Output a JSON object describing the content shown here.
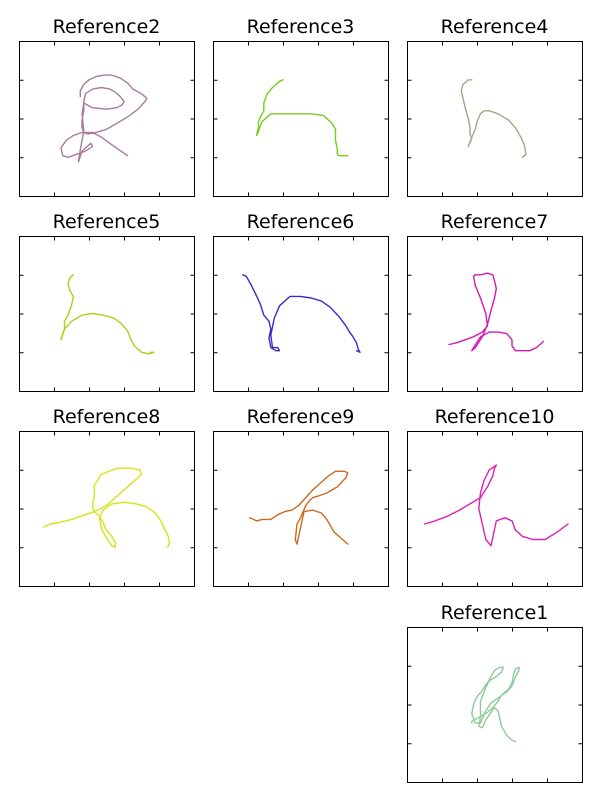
{
  "chart_data": [
    {
      "type": "line",
      "title": "Reference2",
      "color": "#a87ca0",
      "xlim": [
        0,
        1
      ],
      "ylim": [
        0,
        1
      ],
      "series": [
        {
          "x": [
            0.62,
            0.53,
            0.47,
            0.42,
            0.36,
            0.31,
            0.27,
            0.24,
            0.25,
            0.28,
            0.33,
            0.38,
            0.42,
            0.41,
            0.36,
            0.34,
            0.35,
            0.37,
            0.36,
            0.37,
            0.42,
            0.5,
            0.56,
            0.59,
            0.6,
            0.58,
            0.55,
            0.52,
            0.47,
            0.42,
            0.38,
            0.37,
            0.37,
            0.36,
            0.36,
            0.37,
            0.39,
            0.44,
            0.5,
            0.56,
            0.62,
            0.68,
            0.72,
            0.73,
            0.7,
            0.65,
            0.62,
            0.58,
            0.53,
            0.49,
            0.44,
            0.4,
            0.37,
            0.35,
            0.35
          ],
          "y": [
            0.26,
            0.33,
            0.38,
            0.41,
            0.41,
            0.39,
            0.36,
            0.31,
            0.26,
            0.25,
            0.27,
            0.29,
            0.32,
            0.34,
            0.29,
            0.22,
            0.3,
            0.42,
            0.53,
            0.6,
            0.57,
            0.56,
            0.57,
            0.59,
            0.61,
            0.64,
            0.67,
            0.69,
            0.7,
            0.69,
            0.66,
            0.61,
            0.55,
            0.49,
            0.44,
            0.41,
            0.4,
            0.41,
            0.43,
            0.47,
            0.51,
            0.56,
            0.61,
            0.63,
            0.66,
            0.69,
            0.73,
            0.76,
            0.78,
            0.78,
            0.77,
            0.75,
            0.72,
            0.68,
            0.64
          ]
        }
      ]
    },
    {
      "type": "line",
      "title": "Reference3",
      "color": "#76cc22",
      "xlim": [
        0,
        1
      ],
      "ylim": [
        0,
        1
      ],
      "series": [
        {
          "x": [
            0.4,
            0.38,
            0.34,
            0.31,
            0.29,
            0.29,
            0.27,
            0.26,
            0.26,
            0.25,
            0.25,
            0.28,
            0.33,
            0.4,
            0.48,
            0.56,
            0.63,
            0.68,
            0.7,
            0.7,
            0.71,
            0.71,
            0.72,
            0.74,
            0.76,
            0.77
          ],
          "y": [
            0.75,
            0.74,
            0.7,
            0.66,
            0.6,
            0.55,
            0.51,
            0.48,
            0.44,
            0.4,
            0.39,
            0.48,
            0.53,
            0.53,
            0.53,
            0.53,
            0.52,
            0.47,
            0.43,
            0.36,
            0.3,
            0.27,
            0.26,
            0.26,
            0.26,
            0.26
          ]
        }
      ]
    },
    {
      "type": "line",
      "title": "Reference4",
      "color": "#a8a688",
      "xlim": [
        0,
        1
      ],
      "ylim": [
        0,
        1
      ],
      "series": [
        {
          "x": [
            0.37,
            0.35,
            0.32,
            0.31,
            0.32,
            0.33,
            0.34,
            0.35,
            0.36,
            0.36,
            0.37,
            0.35,
            0.37,
            0.39,
            0.4,
            0.42,
            0.44,
            0.47,
            0.52,
            0.58,
            0.62,
            0.65,
            0.67,
            0.68,
            0.66,
            0.66
          ],
          "y": [
            0.75,
            0.75,
            0.72,
            0.68,
            0.63,
            0.58,
            0.54,
            0.5,
            0.44,
            0.4,
            0.37,
            0.32,
            0.38,
            0.43,
            0.48,
            0.53,
            0.55,
            0.55,
            0.53,
            0.49,
            0.44,
            0.38,
            0.33,
            0.27,
            0.25,
            0.25
          ]
        }
      ]
    },
    {
      "type": "line",
      "title": "Reference5",
      "color": "#a8d21a",
      "xlim": [
        0,
        1
      ],
      "ylim": [
        0,
        1
      ],
      "series": [
        {
          "x": [
            0.31,
            0.29,
            0.28,
            0.29,
            0.31,
            0.3,
            0.28,
            0.26,
            0.26,
            0.25,
            0.24,
            0.26,
            0.3,
            0.36,
            0.42,
            0.48,
            0.54,
            0.58,
            0.62,
            0.64,
            0.66,
            0.68,
            0.69,
            0.7,
            0.74,
            0.77,
            0.75
          ],
          "y": [
            0.75,
            0.73,
            0.69,
            0.65,
            0.61,
            0.55,
            0.49,
            0.45,
            0.4,
            0.37,
            0.33,
            0.4,
            0.45,
            0.49,
            0.5,
            0.49,
            0.47,
            0.44,
            0.39,
            0.33,
            0.29,
            0.27,
            0.26,
            0.25,
            0.24,
            0.25,
            0.25
          ]
        }
      ]
    },
    {
      "type": "line",
      "title": "Reference6",
      "color": "#3a2bc6",
      "xlim": [
        0,
        1
      ],
      "ylim": [
        0,
        1
      ],
      "series": [
        {
          "x": [
            0.17,
            0.19,
            0.22,
            0.25,
            0.27,
            0.29,
            0.32,
            0.33,
            0.32,
            0.33,
            0.36,
            0.38,
            0.37,
            0.34,
            0.33,
            0.35,
            0.38,
            0.44,
            0.5,
            0.56,
            0.62,
            0.67,
            0.72,
            0.76,
            0.78,
            0.8,
            0.82,
            0.83,
            0.84,
            0.82
          ],
          "y": [
            0.75,
            0.74,
            0.68,
            0.61,
            0.56,
            0.49,
            0.45,
            0.4,
            0.34,
            0.28,
            0.26,
            0.26,
            0.28,
            0.28,
            0.36,
            0.47,
            0.55,
            0.61,
            0.61,
            0.6,
            0.58,
            0.54,
            0.48,
            0.42,
            0.38,
            0.35,
            0.31,
            0.27,
            0.25,
            0.26
          ]
        }
      ]
    },
    {
      "type": "line",
      "title": "Reference7",
      "color": "#d01cb2",
      "xlim": [
        0,
        1
      ],
      "ylim": [
        0,
        1
      ],
      "series": [
        {
          "x": [
            0.24,
            0.28,
            0.33,
            0.38,
            0.43,
            0.46,
            0.45,
            0.42,
            0.39,
            0.38,
            0.39,
            0.42,
            0.46,
            0.49,
            0.5,
            0.51,
            0.5,
            0.48,
            0.46,
            0.43,
            0.39,
            0.37,
            0.38,
            0.42,
            0.47,
            0.52,
            0.57,
            0.6,
            0.6,
            0.62,
            0.66,
            0.7,
            0.74,
            0.78
          ],
          "y": [
            0.3,
            0.31,
            0.33,
            0.35,
            0.38,
            0.42,
            0.5,
            0.6,
            0.68,
            0.74,
            0.75,
            0.75,
            0.76,
            0.75,
            0.71,
            0.66,
            0.6,
            0.52,
            0.43,
            0.35,
            0.28,
            0.26,
            0.28,
            0.35,
            0.38,
            0.38,
            0.37,
            0.33,
            0.29,
            0.26,
            0.26,
            0.26,
            0.28,
            0.32
          ]
        }
      ]
    },
    {
      "type": "line",
      "title": "Reference8",
      "color": "#d6e31a",
      "xlim": [
        0,
        1
      ],
      "ylim": [
        0,
        1
      ],
      "series": [
        {
          "x": [
            0.14,
            0.18,
            0.23,
            0.3,
            0.38,
            0.45,
            0.5,
            0.54,
            0.59,
            0.63,
            0.67,
            0.7,
            0.69,
            0.64,
            0.56,
            0.47,
            0.43,
            0.43,
            0.42,
            0.43,
            0.46,
            0.48,
            0.5,
            0.53,
            0.55,
            0.55,
            0.53,
            0.5,
            0.47,
            0.46,
            0.48,
            0.53,
            0.6,
            0.67,
            0.73,
            0.78,
            0.81,
            0.83,
            0.85,
            0.86,
            0.85
          ],
          "y": [
            0.38,
            0.4,
            0.41,
            0.43,
            0.46,
            0.49,
            0.52,
            0.56,
            0.61,
            0.65,
            0.69,
            0.72,
            0.75,
            0.76,
            0.76,
            0.72,
            0.65,
            0.58,
            0.52,
            0.48,
            0.45,
            0.41,
            0.36,
            0.32,
            0.28,
            0.25,
            0.26,
            0.31,
            0.37,
            0.44,
            0.49,
            0.53,
            0.54,
            0.53,
            0.51,
            0.47,
            0.42,
            0.37,
            0.33,
            0.28,
            0.25
          ]
        }
      ]
    },
    {
      "type": "line",
      "title": "Reference9",
      "color": "#cc6a1e",
      "xlim": [
        0,
        1
      ],
      "ylim": [
        0,
        1
      ],
      "series": [
        {
          "x": [
            0.21,
            0.23,
            0.25,
            0.28,
            0.33,
            0.37,
            0.41,
            0.45,
            0.49,
            0.53,
            0.57,
            0.62,
            0.66,
            0.7,
            0.75,
            0.77,
            0.76,
            0.71,
            0.65,
            0.6,
            0.57,
            0.55,
            0.53,
            0.5,
            0.48,
            0.47,
            0.48,
            0.52,
            0.57,
            0.62,
            0.65,
            0.67,
            0.69,
            0.72,
            0.75,
            0.77
          ],
          "y": [
            0.44,
            0.43,
            0.42,
            0.43,
            0.43,
            0.46,
            0.48,
            0.49,
            0.52,
            0.57,
            0.62,
            0.67,
            0.71,
            0.74,
            0.74,
            0.73,
            0.7,
            0.64,
            0.6,
            0.58,
            0.57,
            0.55,
            0.52,
            0.44,
            0.4,
            0.3,
            0.27,
            0.48,
            0.49,
            0.47,
            0.43,
            0.39,
            0.35,
            0.32,
            0.29,
            0.27
          ]
        }
      ]
    },
    {
      "type": "line",
      "title": "Reference10",
      "color": "#e020b0",
      "xlim": [
        0,
        1
      ],
      "ylim": [
        0,
        1
      ],
      "series": [
        {
          "x": [
            0.1,
            0.16,
            0.23,
            0.3,
            0.36,
            0.42,
            0.46,
            0.49,
            0.5,
            0.51,
            0.5,
            0.47,
            0.44,
            0.42,
            0.41,
            0.43,
            0.45,
            0.48,
            0.51,
            0.56,
            0.6,
            0.62,
            0.66,
            0.72,
            0.79,
            0.86,
            0.92
          ],
          "y": [
            0.4,
            0.42,
            0.45,
            0.49,
            0.53,
            0.57,
            0.64,
            0.71,
            0.76,
            0.78,
            0.77,
            0.75,
            0.68,
            0.6,
            0.5,
            0.4,
            0.3,
            0.26,
            0.42,
            0.44,
            0.42,
            0.36,
            0.32,
            0.3,
            0.3,
            0.35,
            0.4
          ]
        }
      ]
    },
    {
      "type": "line",
      "title": "Reference1",
      "color": "#8fca9a",
      "xlim": [
        0,
        1
      ],
      "ylim": [
        0,
        1
      ],
      "series": [
        {
          "x": [
            0.62,
            0.6,
            0.57,
            0.54,
            0.52,
            0.5,
            0.5,
            0.48,
            0.45,
            0.43,
            0.41,
            0.42,
            0.42,
            0.44,
            0.47,
            0.5,
            0.53,
            0.55,
            0.54,
            0.51,
            0.48,
            0.45,
            0.43,
            0.4,
            0.38,
            0.37,
            0.39,
            0.42,
            0.45,
            0.48,
            0.53,
            0.58,
            0.6,
            0.61,
            0.62,
            0.64,
            0.64,
            0.62,
            0.6,
            0.57,
            0.54,
            0.52,
            0.49,
            0.46,
            0.43,
            0.4,
            0.38,
            0.37,
            0.37
          ],
          "y": [
            0.26,
            0.27,
            0.3,
            0.36,
            0.46,
            0.48,
            0.48,
            0.45,
            0.4,
            0.35,
            0.36,
            0.42,
            0.52,
            0.58,
            0.66,
            0.72,
            0.74,
            0.74,
            0.71,
            0.68,
            0.66,
            0.63,
            0.59,
            0.55,
            0.5,
            0.44,
            0.38,
            0.38,
            0.46,
            0.51,
            0.55,
            0.6,
            0.64,
            0.7,
            0.73,
            0.74,
            0.72,
            0.68,
            0.62,
            0.58,
            0.56,
            0.52,
            0.48,
            0.45,
            0.43,
            0.41,
            0.4,
            0.39,
            0.38
          ]
        }
      ]
    }
  ]
}
